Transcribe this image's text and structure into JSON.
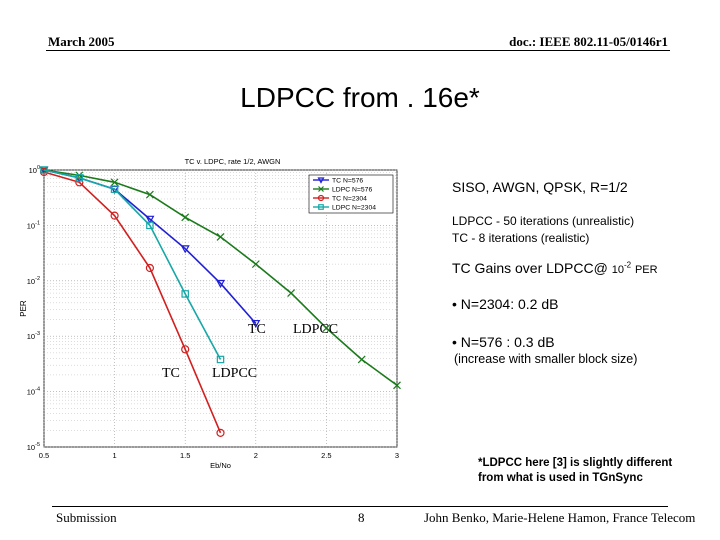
{
  "header": {
    "date": "March 2005",
    "doc": "doc.: IEEE 802.11-05/0146r1"
  },
  "slide": {
    "title": "LDPCC from . 16e*"
  },
  "chart_data": {
    "type": "line",
    "title": "TC v. LDPC, rate 1/2, AWGN",
    "xlabel": "Eb/No",
    "ylabel": "PER",
    "xlim": [
      0.5,
      3
    ],
    "ylim": [
      1e-05,
      1
    ],
    "yscale": "log",
    "grid": true,
    "legend_position": "top-right",
    "xticks": [
      "0.5",
      "1",
      "1.5",
      "2",
      "2.5",
      "3"
    ],
    "yticks": [
      {
        "base": "10",
        "exp": "0",
        "value": 1
      },
      {
        "base": "10",
        "exp": "-1",
        "value": 0.1
      },
      {
        "base": "10",
        "exp": "-2",
        "value": 0.01
      },
      {
        "base": "10",
        "exp": "-3",
        "value": 0.001
      },
      {
        "base": "10",
        "exp": "-4",
        "value": 0.0001
      },
      {
        "base": "10",
        "exp": "-5",
        "value": 1e-05
      }
    ],
    "series": [
      {
        "name": "TC N=576",
        "color": "#1f1fd6",
        "marker": "triangle-down",
        "x": [
          0.5,
          0.75,
          1.0,
          1.25,
          1.5,
          1.75,
          2.0
        ],
        "y": [
          1.0,
          0.72,
          0.45,
          0.13,
          0.038,
          0.009,
          0.0017
        ]
      },
      {
        "name": "LDPC N=576",
        "color": "#1b7a1b",
        "marker": "x",
        "x": [
          0.5,
          0.75,
          1.0,
          1.25,
          1.5,
          1.75,
          2.0,
          2.25,
          2.5,
          2.75,
          3.0
        ],
        "y": [
          1.0,
          0.8,
          0.6,
          0.36,
          0.14,
          0.062,
          0.02,
          0.006,
          0.0014,
          0.00038,
          0.00013
        ]
      },
      {
        "name": "TC N=2304",
        "color": "#d21f1f",
        "marker": "circle",
        "x": [
          0.5,
          0.75,
          1.0,
          1.25,
          1.5,
          1.75
        ],
        "y": [
          0.92,
          0.6,
          0.15,
          0.017,
          0.00058,
          1.8e-05
        ]
      },
      {
        "name": "LDPC N=2304",
        "color": "#17a7a7",
        "marker": "square",
        "x": [
          0.5,
          0.75,
          1.0,
          1.25,
          1.5,
          1.75
        ],
        "y": [
          1.0,
          0.72,
          0.45,
          0.1,
          0.0058,
          0.00038
        ]
      }
    ],
    "annotations": [
      {
        "text": "TC",
        "at_series": "TC N=576"
      },
      {
        "text": "LDPCC",
        "at_series": "LDPC N=576"
      },
      {
        "text": "TC",
        "at_series": "TC N=2304"
      },
      {
        "text": "LDPCC",
        "at_series": "LDPC N=2304"
      }
    ]
  },
  "notes": {
    "siso": "SISO, AWGN, QPSK, R=1/2",
    "ldpc_iter": "LDPCC - 50 iterations (unrealistic)",
    "tc_iter": "TC - 8 iterations (realistic)",
    "gains_prefix": "TC Gains over LDPCC@",
    "gains_base": "10",
    "gains_exp": "-2",
    "gains_suffix": "PER",
    "bullet1": "• N=2304: 0.2 dB",
    "bullet2": "• N=576 : 0.3 dB",
    "increase": "(increase with smaller block size)"
  },
  "footnote": {
    "line1": "*LDPCC here [3] is slightly different",
    "line2": "from what is used in TGnSync"
  },
  "footer": {
    "left": "Submission",
    "page": "8",
    "right": "John Benko, Marie-Helene Hamon, France Telecom"
  }
}
